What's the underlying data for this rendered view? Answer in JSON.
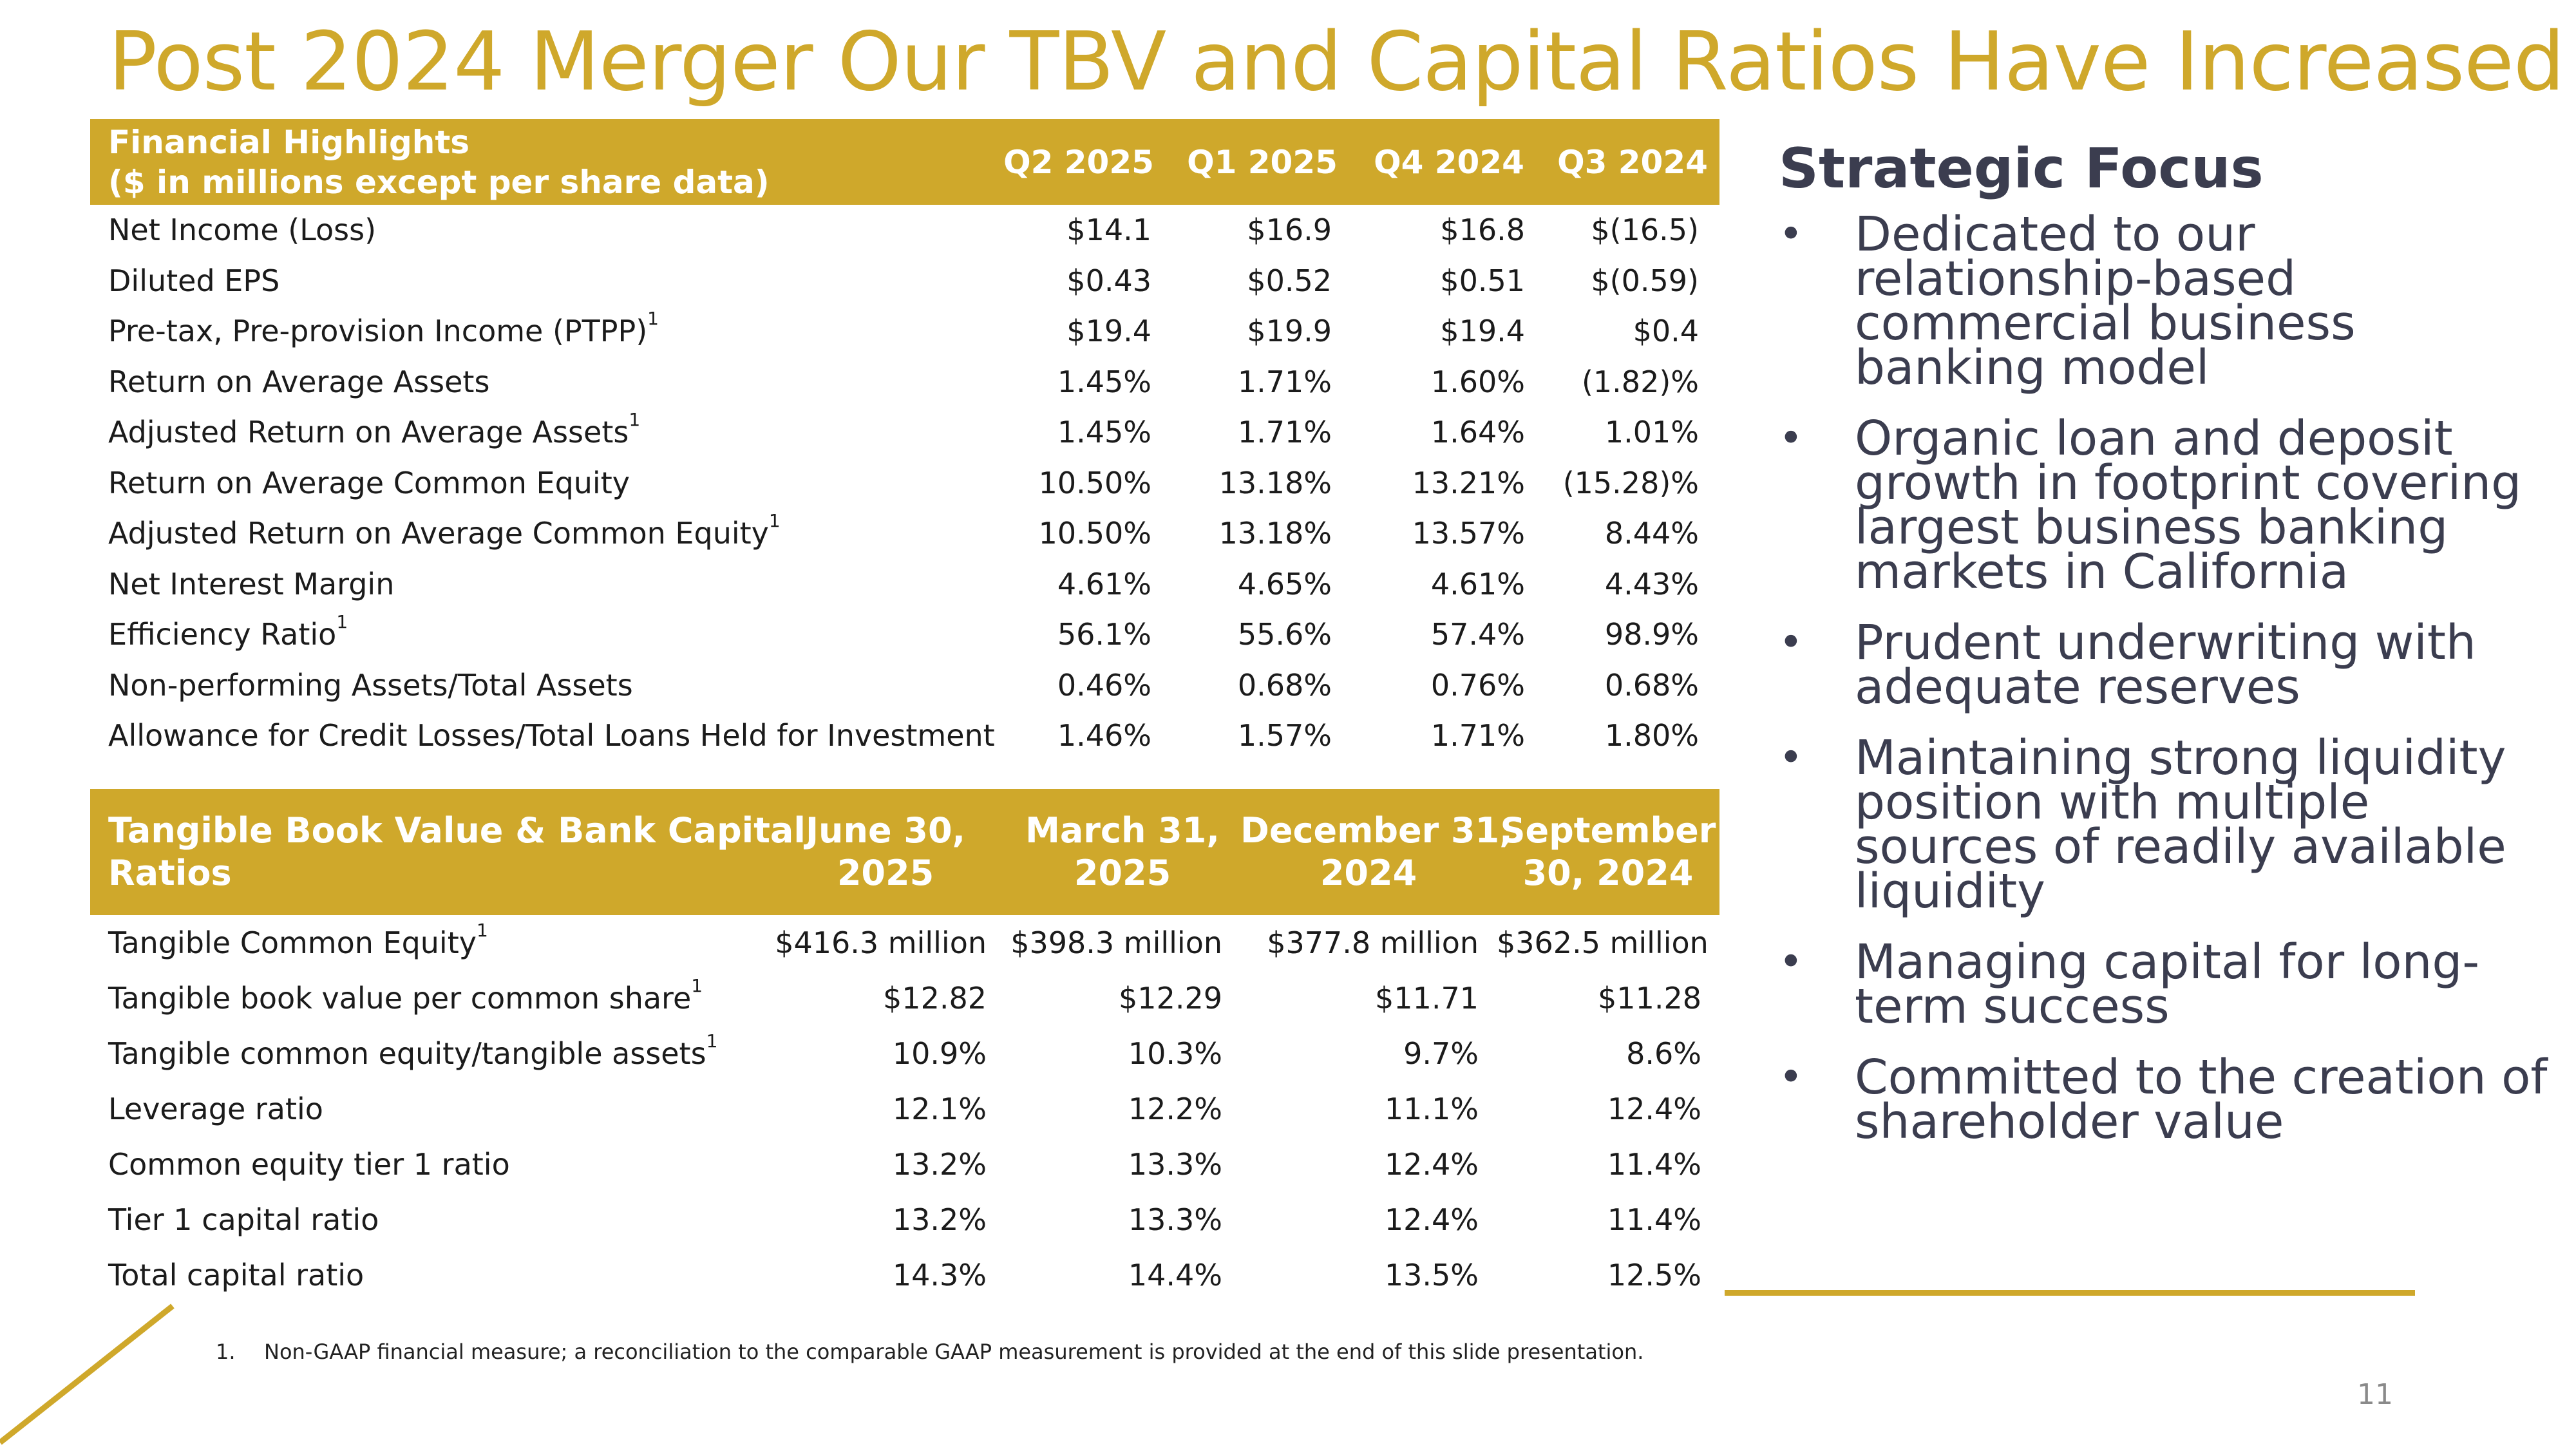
{
  "title": "Post 2024 Merger Our TBV and Capital Ratios Have Increased",
  "financial": {
    "header_line1": "Financial Highlights",
    "header_line2": "($ in millions except per share data)",
    "columns": [
      "Q2 2025",
      "Q1 2025",
      "Q4 2024",
      "Q3 2024"
    ],
    "rows": [
      {
        "label": "Net Income (Loss)",
        "sup": "",
        "values": [
          "$14.1",
          "$16.9",
          "$16.8",
          "$(16.5)"
        ]
      },
      {
        "label": "Diluted EPS",
        "sup": "",
        "values": [
          "$0.43",
          "$0.52",
          "$0.51",
          "$(0.59)"
        ]
      },
      {
        "label": "Pre-tax, Pre-provision Income (PTPP)",
        "sup": "1",
        "values": [
          "$19.4",
          "$19.9",
          "$19.4",
          "$0.4"
        ]
      },
      {
        "label": "Return on Average Assets",
        "sup": "",
        "values": [
          "1.45%",
          "1.71%",
          "1.60%",
          "(1.82)%"
        ]
      },
      {
        "label": "Adjusted Return on Average Assets",
        "sup": "1",
        "values": [
          "1.45%",
          "1.71%",
          "1.64%",
          "1.01%"
        ]
      },
      {
        "label": "Return on Average Common Equity",
        "sup": "",
        "values": [
          "10.50%",
          "13.18%",
          "13.21%",
          "(15.28)%"
        ]
      },
      {
        "label": "Adjusted Return on Average Common Equity",
        "sup": "1",
        "values": [
          "10.50%",
          "13.18%",
          "13.57%",
          "8.44%"
        ]
      },
      {
        "label": "Net Interest Margin",
        "sup": "",
        "values": [
          "4.61%",
          "4.65%",
          "4.61%",
          "4.43%"
        ]
      },
      {
        "label": "Efficiency Ratio",
        "sup": "1",
        "values": [
          "56.1%",
          "55.6%",
          "57.4%",
          "98.9%"
        ]
      },
      {
        "label": "Non-performing Assets/Total Assets",
        "sup": "",
        "values": [
          "0.46%",
          "0.68%",
          "0.76%",
          "0.68%"
        ]
      },
      {
        "label": "Allowance for Credit Losses/Total Loans Held for Investment",
        "sup": "",
        "values": [
          "1.46%",
          "1.57%",
          "1.71%",
          "1.80%"
        ]
      }
    ]
  },
  "capital": {
    "header_line1": "Tangible Book Value & Bank Capital",
    "header_line2": "Ratios",
    "columns": [
      {
        "line1": "June 30,",
        "line2": "2025"
      },
      {
        "line1": "March 31,",
        "line2": "2025"
      },
      {
        "line1": "December 31,",
        "line2": "2024"
      },
      {
        "line1": "September",
        "line2": "30, 2024"
      }
    ],
    "rows": [
      {
        "label": "Tangible Common Equity",
        "sup": "1",
        "values": [
          "$416.3 million",
          "$398.3 million",
          "$377.8 million",
          "$362.5 million"
        ]
      },
      {
        "label": "Tangible book value per common share",
        "sup": "1",
        "values": [
          "$12.82",
          "$12.29",
          "$11.71",
          "$11.28"
        ]
      },
      {
        "label": "Tangible common equity/tangible assets",
        "sup": "1",
        "values": [
          "10.9%",
          "10.3%",
          "9.7%",
          "8.6%"
        ]
      },
      {
        "label": "Leverage ratio",
        "sup": "",
        "values": [
          "12.1%",
          "12.2%",
          "11.1%",
          "12.4%"
        ]
      },
      {
        "label": "Common equity tier 1 ratio",
        "sup": "",
        "values": [
          "13.2%",
          "13.3%",
          "12.4%",
          "11.4%"
        ]
      },
      {
        "label": "Tier 1 capital ratio",
        "sup": "",
        "values": [
          "13.2%",
          "13.3%",
          "12.4%",
          "11.4%"
        ]
      },
      {
        "label": "Total capital ratio",
        "sup": "",
        "values": [
          "14.3%",
          "14.4%",
          "13.5%",
          "12.5%"
        ]
      }
    ]
  },
  "strategic": {
    "heading": "Strategic Focus",
    "bullet_char": "•",
    "bullets": [
      "Dedicated to our relationship-based commercial business banking model",
      "Organic loan and deposit growth in footprint covering largest business banking markets in California",
      "Prudent underwriting with adequate reserves",
      "Maintaining strong liquidity position with multiple sources of readily available liquidity",
      "Managing capital for long-term success",
      "Committed to the creation of shareholder value"
    ]
  },
  "footnote": {
    "number": "1.",
    "text": "Non-GAAP financial measure; a reconciliation to the comparable GAAP measurement is provided at the end of this slide presentation."
  },
  "page_number": "11",
  "colors": {
    "accent": "#CFA82B",
    "text": "#1b1b1b",
    "heading": "#3b3d4f"
  }
}
